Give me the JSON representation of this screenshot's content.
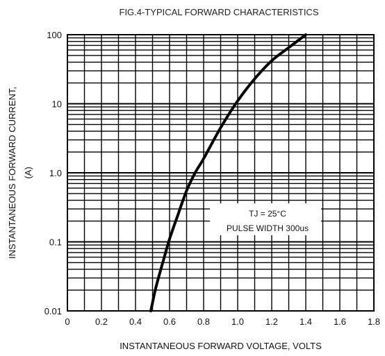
{
  "chart_data": {
    "type": "line",
    "title": "FIG.4-TYPICAL FORWARD CHARACTERISTICS",
    "xlabel": "INSTANTANEOUS FORWARD VOLTAGE, VOLTS",
    "ylabel_line1": "INSTANTANEOUS FORWARD CURRENT,",
    "ylabel_line2": "(A)",
    "xlim": [
      0,
      1.8
    ],
    "ylim": [
      0.01,
      100
    ],
    "y_scale": "log",
    "grid": true,
    "x_ticks": [
      "0",
      "0.2",
      "0.4",
      "0.6",
      "0.8",
      "1.0",
      "1.2",
      "1.4",
      "1.6",
      "1.8"
    ],
    "y_ticks": [
      "0.01",
      "0.1",
      "1.0",
      "10",
      "100"
    ],
    "annotations": [
      "TJ = 25°C",
      "PULSE WIDTH 300us"
    ],
    "series": [
      {
        "x": [
          0.49,
          0.52,
          0.56,
          0.6,
          0.65,
          0.7,
          0.75,
          0.8,
          0.9,
          1.0,
          1.1,
          1.2,
          1.3,
          1.4
        ],
        "y": [
          0.01,
          0.022,
          0.05,
          0.11,
          0.25,
          0.55,
          1.0,
          1.6,
          4.5,
          11,
          23,
          42,
          65,
          100
        ]
      }
    ]
  }
}
